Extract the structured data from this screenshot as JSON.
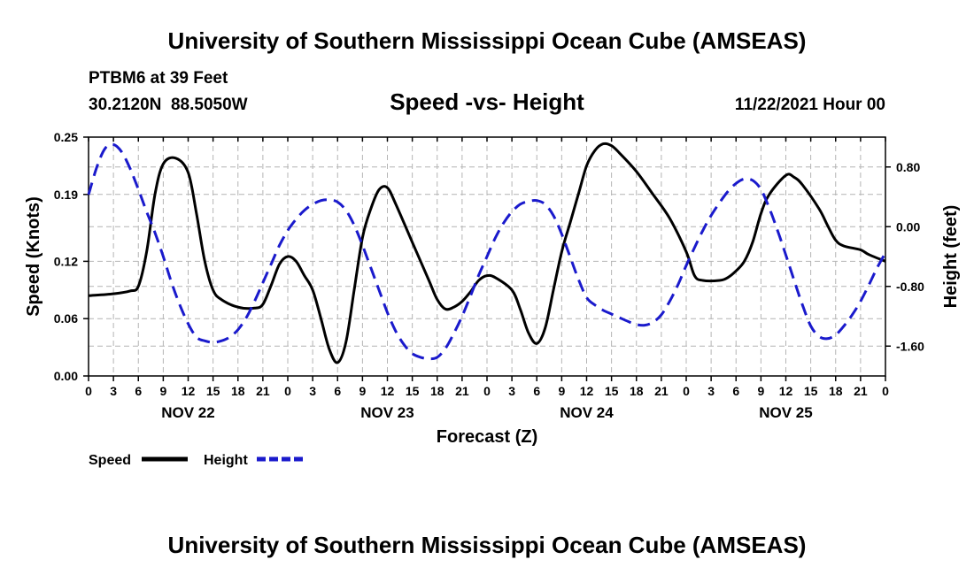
{
  "header": {
    "title": "University of Southern Mississippi Ocean Cube (AMSEAS)",
    "station": "PTBM6 at 39 Feet",
    "coords": "30.2120N  88.5050W",
    "subtitle": "Speed -vs- Height",
    "datetime": "11/22/2021 Hour 00"
  },
  "footer": {
    "title": "University of Southern Mississippi Ocean Cube (AMSEAS)"
  },
  "legend": {
    "speed_label": "Speed",
    "height_label": "Height"
  },
  "colors": {
    "speed": "#000000",
    "height": "#1a1acc",
    "grid": "#b4b4b4"
  },
  "chart_data": {
    "type": "line",
    "title": "Speed -vs- Height",
    "xlabel": "Forecast (Z)",
    "ylabel_left": "Speed (Knots)",
    "ylabel_right": "Height (feet)",
    "grid": true,
    "x_range_hours": [
      0,
      96
    ],
    "x_ticks": [
      {
        "h": 0,
        "label": "0"
      },
      {
        "h": 3,
        "label": "3"
      },
      {
        "h": 6,
        "label": "6"
      },
      {
        "h": 9,
        "label": "9"
      },
      {
        "h": 12,
        "label": "12"
      },
      {
        "h": 15,
        "label": "15"
      },
      {
        "h": 18,
        "label": "18"
      },
      {
        "h": 21,
        "label": "21"
      },
      {
        "h": 24,
        "label": "0"
      },
      {
        "h": 27,
        "label": "3"
      },
      {
        "h": 30,
        "label": "6"
      },
      {
        "h": 33,
        "label": "9"
      },
      {
        "h": 36,
        "label": "12"
      },
      {
        "h": 39,
        "label": "15"
      },
      {
        "h": 42,
        "label": "18"
      },
      {
        "h": 45,
        "label": "21"
      },
      {
        "h": 48,
        "label": "0"
      },
      {
        "h": 51,
        "label": "3"
      },
      {
        "h": 54,
        "label": "6"
      },
      {
        "h": 57,
        "label": "9"
      },
      {
        "h": 60,
        "label": "12"
      },
      {
        "h": 63,
        "label": "15"
      },
      {
        "h": 66,
        "label": "18"
      },
      {
        "h": 69,
        "label": "21"
      },
      {
        "h": 72,
        "label": "0"
      },
      {
        "h": 75,
        "label": "3"
      },
      {
        "h": 78,
        "label": "6"
      },
      {
        "h": 81,
        "label": "9"
      },
      {
        "h": 84,
        "label": "12"
      },
      {
        "h": 87,
        "label": "15"
      },
      {
        "h": 90,
        "label": "18"
      },
      {
        "h": 93,
        "label": "21"
      },
      {
        "h": 96,
        "label": "0"
      }
    ],
    "day_labels": [
      {
        "h": 12,
        "label": "NOV 22"
      },
      {
        "h": 36,
        "label": "NOV 23"
      },
      {
        "h": 60,
        "label": "NOV 24"
      },
      {
        "h": 84,
        "label": "NOV 25"
      }
    ],
    "y_left": {
      "range": [
        0,
        0.25
      ],
      "ticks": [
        "0.00",
        "0.06",
        "0.12",
        "0.19",
        "0.25"
      ]
    },
    "y_right": {
      "range": [
        -2.0,
        1.2
      ],
      "ticks": [
        "-1.60",
        "-0.80",
        "0.00",
        "0.80"
      ]
    },
    "series": [
      {
        "name": "Speed",
        "axis": "left",
        "style": "solid",
        "points": [
          [
            0,
            0.084
          ],
          [
            3,
            0.086
          ],
          [
            5,
            0.089
          ],
          [
            6,
            0.094
          ],
          [
            7,
            0.13
          ],
          [
            8,
            0.19
          ],
          [
            9,
            0.222
          ],
          [
            10.5,
            0.228
          ],
          [
            12,
            0.213
          ],
          [
            13,
            0.17
          ],
          [
            14,
            0.12
          ],
          [
            15,
            0.09
          ],
          [
            16,
            0.08
          ],
          [
            18,
            0.072
          ],
          [
            20,
            0.071
          ],
          [
            21,
            0.075
          ],
          [
            22,
            0.095
          ],
          [
            23,
            0.117
          ],
          [
            24,
            0.125
          ],
          [
            25,
            0.12
          ],
          [
            26,
            0.105
          ],
          [
            27,
            0.09
          ],
          [
            28,
            0.06
          ],
          [
            29,
            0.028
          ],
          [
            30,
            0.014
          ],
          [
            31,
            0.035
          ],
          [
            32,
            0.09
          ],
          [
            33,
            0.145
          ],
          [
            34,
            0.175
          ],
          [
            35,
            0.195
          ],
          [
            36,
            0.197
          ],
          [
            37,
            0.18
          ],
          [
            39,
            0.14
          ],
          [
            41,
            0.1
          ],
          [
            42,
            0.08
          ],
          [
            43,
            0.07
          ],
          [
            44,
            0.072
          ],
          [
            45,
            0.078
          ],
          [
            46,
            0.088
          ],
          [
            47,
            0.1
          ],
          [
            48,
            0.105
          ],
          [
            49,
            0.103
          ],
          [
            51,
            0.09
          ],
          [
            52,
            0.07
          ],
          [
            53,
            0.045
          ],
          [
            54,
            0.034
          ],
          [
            55,
            0.05
          ],
          [
            56,
            0.09
          ],
          [
            57,
            0.13
          ],
          [
            58,
            0.16
          ],
          [
            59,
            0.19
          ],
          [
            60,
            0.22
          ],
          [
            61,
            0.236
          ],
          [
            62,
            0.243
          ],
          [
            63,
            0.241
          ],
          [
            64,
            0.233
          ],
          [
            66,
            0.214
          ],
          [
            68,
            0.19
          ],
          [
            70,
            0.165
          ],
          [
            72,
            0.13
          ],
          [
            73,
            0.105
          ],
          [
            74,
            0.1
          ],
          [
            76,
            0.1
          ],
          [
            77,
            0.103
          ],
          [
            78,
            0.11
          ],
          [
            79,
            0.12
          ],
          [
            80,
            0.14
          ],
          [
            81,
            0.17
          ],
          [
            82,
            0.19
          ],
          [
            84,
            0.21
          ],
          [
            85,
            0.208
          ],
          [
            86,
            0.2
          ],
          [
            88,
            0.175
          ],
          [
            89,
            0.158
          ],
          [
            90,
            0.142
          ],
          [
            91,
            0.136
          ],
          [
            93,
            0.132
          ],
          [
            94,
            0.127
          ],
          [
            96,
            0.12
          ]
        ]
      },
      {
        "name": "Height",
        "axis": "right",
        "style": "dashed",
        "points": [
          [
            0,
            0.43
          ],
          [
            1,
            0.8
          ],
          [
            2,
            1.05
          ],
          [
            3,
            1.1
          ],
          [
            4,
            1.0
          ],
          [
            5,
            0.78
          ],
          [
            6,
            0.5
          ],
          [
            7,
            0.2
          ],
          [
            8,
            -0.08
          ],
          [
            9,
            -0.4
          ],
          [
            10,
            -0.75
          ],
          [
            11,
            -1.05
          ],
          [
            12,
            -1.3
          ],
          [
            13,
            -1.48
          ],
          [
            14,
            -1.53
          ],
          [
            15,
            -1.55
          ],
          [
            16,
            -1.53
          ],
          [
            17,
            -1.48
          ],
          [
            18,
            -1.38
          ],
          [
            19,
            -1.22
          ],
          [
            20,
            -1.0
          ],
          [
            21,
            -0.75
          ],
          [
            22,
            -0.5
          ],
          [
            23,
            -0.25
          ],
          [
            24,
            -0.05
          ],
          [
            25,
            0.1
          ],
          [
            26,
            0.22
          ],
          [
            27,
            0.3
          ],
          [
            28,
            0.35
          ],
          [
            29,
            0.36
          ],
          [
            30,
            0.33
          ],
          [
            31,
            0.22
          ],
          [
            32,
            0.02
          ],
          [
            33,
            -0.25
          ],
          [
            34,
            -0.55
          ],
          [
            35,
            -0.85
          ],
          [
            36,
            -1.15
          ],
          [
            37,
            -1.4
          ],
          [
            38,
            -1.58
          ],
          [
            39,
            -1.7
          ],
          [
            40,
            -1.75
          ],
          [
            41,
            -1.77
          ],
          [
            42,
            -1.75
          ],
          [
            43,
            -1.63
          ],
          [
            44,
            -1.43
          ],
          [
            45,
            -1.2
          ],
          [
            46,
            -0.93
          ],
          [
            47,
            -0.65
          ],
          [
            48,
            -0.4
          ],
          [
            49,
            -0.15
          ],
          [
            50,
            0.05
          ],
          [
            51,
            0.2
          ],
          [
            52,
            0.3
          ],
          [
            53,
            0.34
          ],
          [
            54,
            0.35
          ],
          [
            55,
            0.3
          ],
          [
            56,
            0.15
          ],
          [
            57,
            -0.1
          ],
          [
            58,
            -0.4
          ],
          [
            59,
            -0.7
          ],
          [
            60,
            -0.95
          ],
          [
            61,
            -1.05
          ],
          [
            62,
            -1.12
          ],
          [
            63,
            -1.17
          ],
          [
            64,
            -1.22
          ],
          [
            65,
            -1.27
          ],
          [
            66,
            -1.31
          ],
          [
            67,
            -1.32
          ],
          [
            68,
            -1.28
          ],
          [
            69,
            -1.18
          ],
          [
            70,
            -1.0
          ],
          [
            71,
            -0.78
          ],
          [
            72,
            -0.52
          ],
          [
            73,
            -0.28
          ],
          [
            74,
            -0.05
          ],
          [
            75,
            0.15
          ],
          [
            76,
            0.32
          ],
          [
            77,
            0.47
          ],
          [
            78,
            0.58
          ],
          [
            79,
            0.64
          ],
          [
            80,
            0.62
          ],
          [
            81,
            0.5
          ],
          [
            82,
            0.25
          ],
          [
            83,
            -0.05
          ],
          [
            84,
            -0.38
          ],
          [
            85,
            -0.72
          ],
          [
            86,
            -1.05
          ],
          [
            87,
            -1.33
          ],
          [
            88,
            -1.47
          ],
          [
            89,
            -1.5
          ],
          [
            90,
            -1.45
          ],
          [
            91,
            -1.33
          ],
          [
            92,
            -1.18
          ],
          [
            93,
            -1.0
          ],
          [
            94,
            -0.78
          ],
          [
            95,
            -0.55
          ],
          [
            96,
            -0.35
          ]
        ]
      }
    ]
  }
}
